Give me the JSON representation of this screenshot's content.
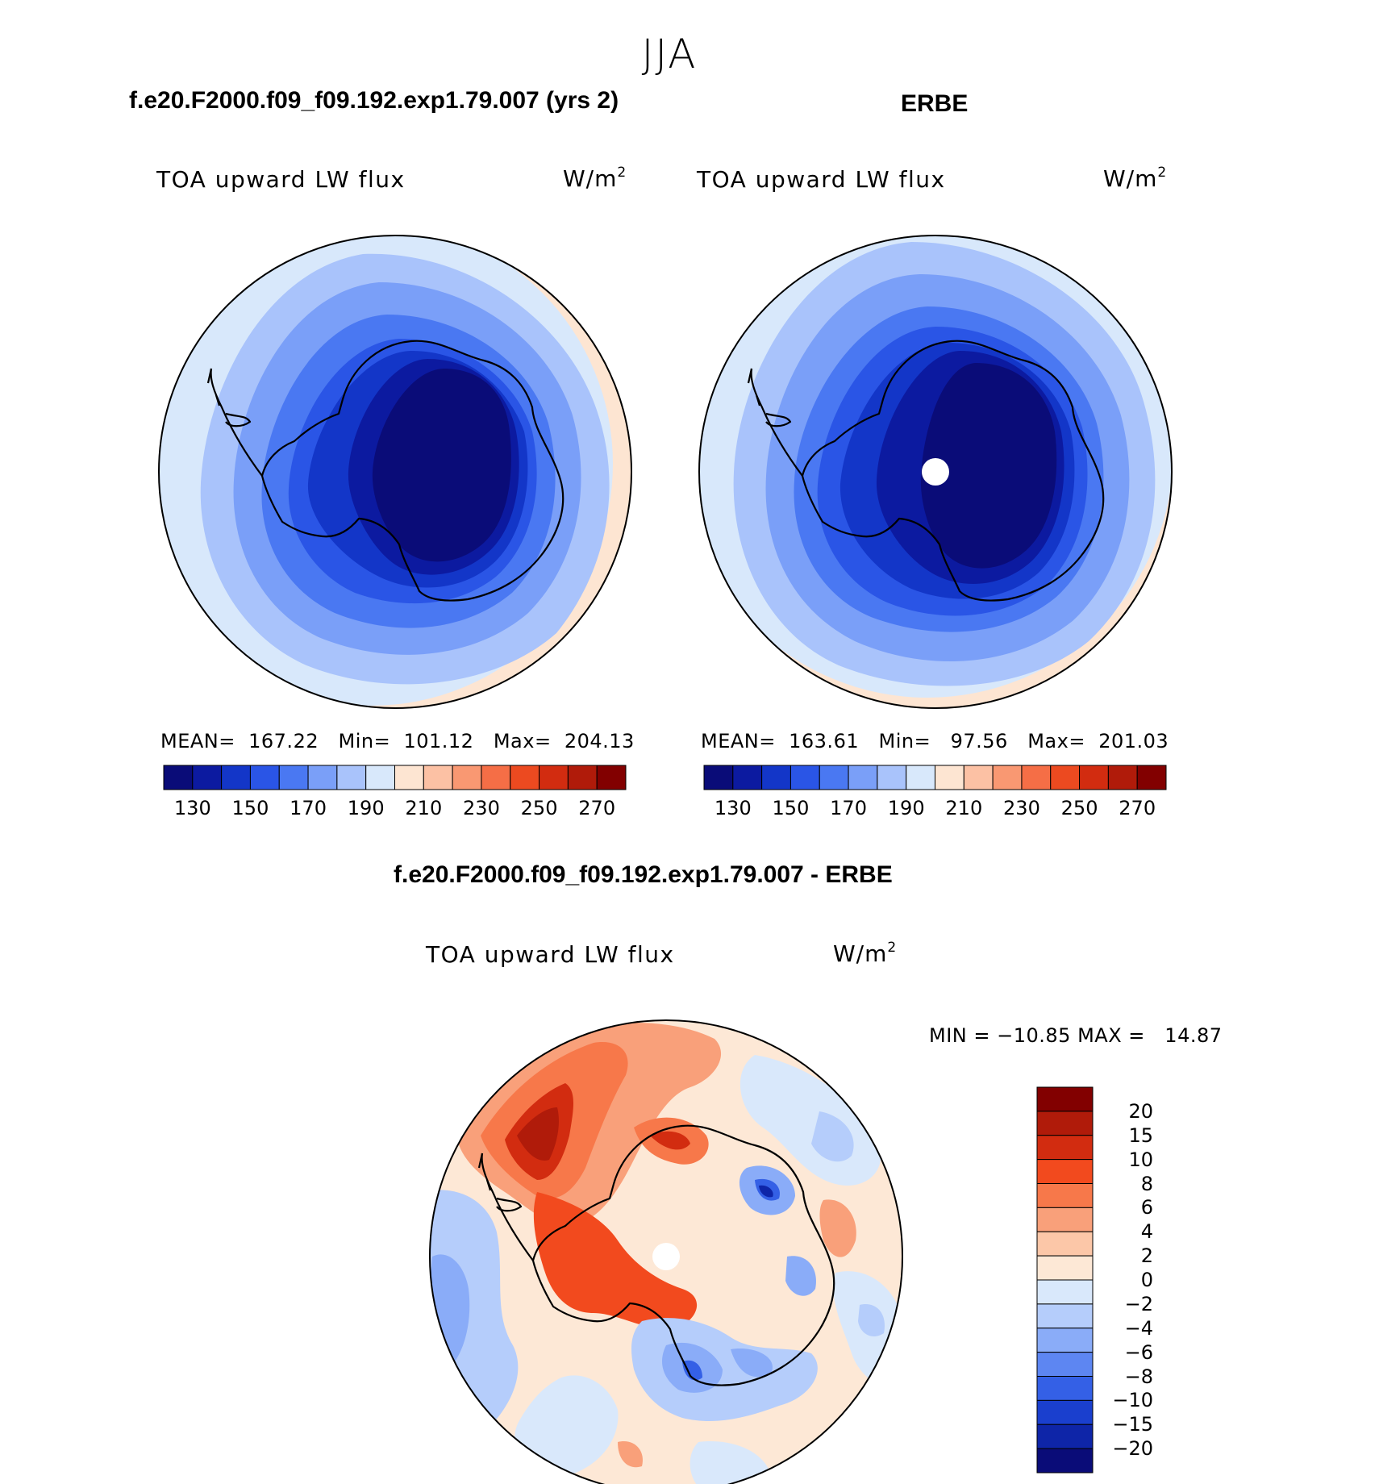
{
  "season": "JJA",
  "panels": {
    "model": {
      "case": "f.e20.F2000.f09_f09.192.exp1.79.007 (yrs 2)",
      "variable": "TOA upward LW flux",
      "units": "W/m",
      "units_sup": "2",
      "mean_label": "MEAN=",
      "mean": "167.22",
      "min_label": "Min=",
      "min": "101.12",
      "max_label": "Max=",
      "max": "204.13"
    },
    "obs": {
      "case": "ERBE",
      "variable": "TOA upward LW flux",
      "units": "W/m",
      "units_sup": "2",
      "mean_label": "MEAN=",
      "mean": "163.61",
      "min_label": "Min=",
      "min": "97.56",
      "max_label": "Max=",
      "max": "201.03"
    },
    "diff": {
      "case": "f.e20.F2000.f09_f09.192.exp1.79.007 - ERBE",
      "variable": "TOA upward LW flux",
      "units": "W/m",
      "units_sup": "2",
      "min_label": "MIN =",
      "min": "−10.85",
      "max_label": "MAX =",
      "max": "14.87"
    }
  },
  "chart_data": [
    {
      "type": "heatmap",
      "title": "f.e20.F2000.f09_f09.192.exp1.79.007 (yrs 2)",
      "subtitle": "TOA upward LW flux",
      "units": "W/m2",
      "projection": "south polar stereographic",
      "mean": 167.22,
      "min": 101.12,
      "max": 204.13,
      "colorbar_ticks": [
        "130",
        "150",
        "170",
        "190",
        "210",
        "230",
        "250",
        "270"
      ],
      "colorbar_colors": [
        "#0a0c78",
        "#0c1aa0",
        "#1336c8",
        "#2a55e6",
        "#4a78f2",
        "#7a9ff8",
        "#a9c3fb",
        "#d8e8fb",
        "#fde5d2",
        "#fcc1a4",
        "#f99872",
        "#f56e46",
        "#ec4a20",
        "#d22c10",
        "#b01b0a",
        "#820000"
      ]
    },
    {
      "type": "heatmap",
      "title": "ERBE",
      "subtitle": "TOA upward LW flux",
      "units": "W/m2",
      "projection": "south polar stereographic",
      "mean": 163.61,
      "min": 97.56,
      "max": 201.03,
      "colorbar_ticks": [
        "130",
        "150",
        "170",
        "190",
        "210",
        "230",
        "250",
        "270"
      ],
      "colorbar_colors": [
        "#0a0c78",
        "#0c1aa0",
        "#1336c8",
        "#2a55e6",
        "#4a78f2",
        "#7a9ff8",
        "#a9c3fb",
        "#d8e8fb",
        "#fde5d2",
        "#fcc1a4",
        "#f99872",
        "#f56e46",
        "#ec4a20",
        "#d22c10",
        "#b01b0a",
        "#820000"
      ]
    },
    {
      "type": "heatmap",
      "title": "f.e20.F2000.f09_f09.192.exp1.79.007 - ERBE",
      "subtitle": "TOA upward LW flux",
      "units": "W/m2",
      "projection": "south polar stereographic",
      "min": -10.85,
      "max": 14.87,
      "colorbar_ticks": [
        "20",
        "15",
        "10",
        "8",
        "6",
        "4",
        "2",
        "0",
        "−2",
        "−4",
        "−6",
        "−8",
        "−10",
        "−15",
        "−20"
      ],
      "colorbar_colors": [
        "#820000",
        "#b01b0a",
        "#d22c10",
        "#f24a1e",
        "#f7784a",
        "#f9a07a",
        "#fcc7a8",
        "#fde8d6",
        "#d9e8fb",
        "#b5cdfb",
        "#8aacf8",
        "#5d86f2",
        "#3460e6",
        "#1a3fce",
        "#0e25a8",
        "#0a0c78"
      ]
    }
  ]
}
